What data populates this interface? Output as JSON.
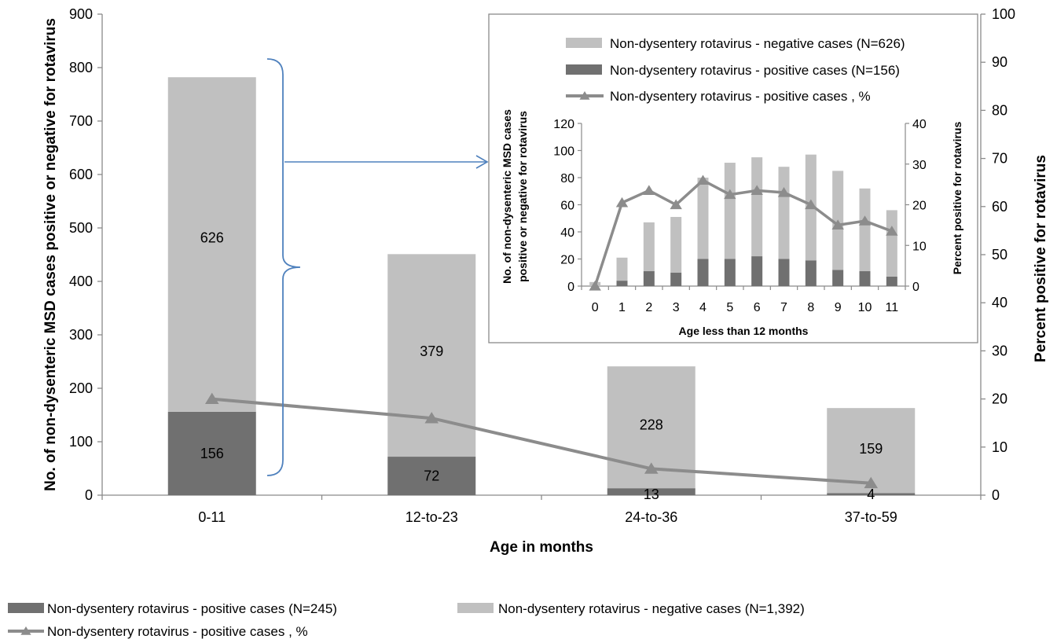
{
  "chart_data": [
    {
      "type": "bar",
      "stacked": true,
      "categories": [
        "0-11",
        "12-to-23",
        "24-to-36",
        "37-to-59"
      ],
      "xlabel": "Age in months",
      "ylabel": "No. of non-dysenteric  MSD cases positive or negative for rotavirus",
      "y2label": "Percent positive for rotavirus",
      "ylim": [
        0,
        900
      ],
      "y2lim": [
        0,
        100
      ],
      "yticks": [
        0,
        100,
        200,
        300,
        400,
        500,
        600,
        700,
        800,
        900
      ],
      "y2ticks": [
        0,
        10,
        20,
        30,
        40,
        50,
        60,
        70,
        80,
        90,
        100
      ],
      "series": [
        {
          "name": "Non-dysentery rotavirus - positive  cases  (N=245)",
          "kind": "bar",
          "color": "#707070",
          "values": [
            156,
            72,
            13,
            4
          ]
        },
        {
          "name": "Non-dysentery rotavirus - negative cases (N=1,392)",
          "kind": "bar",
          "color": "#c0c0c0",
          "values": [
            626,
            379,
            228,
            159
          ]
        },
        {
          "name": "Non-dysentery rotavirus - positive  cases , %",
          "kind": "line",
          "axis": "right",
          "color": "#8c8c8c",
          "values": [
            20,
            16,
            5.5,
            2.5
          ]
        }
      ],
      "legend": "bottom",
      "annotation": "bracket-arrow from 0-11 bar to inset"
    },
    {
      "type": "bar",
      "stacked": true,
      "inset": true,
      "categories": [
        "0",
        "1",
        "2",
        "3",
        "4",
        "5",
        "6",
        "7",
        "8",
        "9",
        "10",
        "11"
      ],
      "xlabel": "Age  less than 12 months",
      "ylabel_line1": "No. of  non-dysenteric  MSD cases",
      "ylabel_line2": "positive or negative for rotavirus",
      "y2label": "Percent positive for rotavirus",
      "ylim": [
        0,
        120
      ],
      "y2lim": [
        0,
        40
      ],
      "yticks": [
        0,
        20,
        40,
        60,
        80,
        100,
        120
      ],
      "y2ticks": [
        0,
        10,
        20,
        30,
        40
      ],
      "series": [
        {
          "name": "Non-dysentery rotavirus - negative cases (N=626)",
          "kind": "bar",
          "color": "#c0c0c0",
          "values": [
            3,
            17,
            36,
            41,
            60,
            71,
            73,
            68,
            78,
            73,
            61,
            49
          ]
        },
        {
          "name": "Non-dysentery rotavirus - positive  cases  (N=156)",
          "kind": "bar",
          "color": "#707070",
          "values": [
            0,
            4,
            11,
            10,
            20,
            20,
            22,
            20,
            19,
            12,
            11,
            7
          ]
        },
        {
          "name": "Non-dysentery rotavirus - positive  cases , %",
          "kind": "line",
          "axis": "right",
          "color": "#8c8c8c",
          "values": [
            0,
            20.5,
            23.5,
            20,
            26,
            22.5,
            23.5,
            23,
            20,
            15,
            16,
            13.5
          ]
        }
      ],
      "legend": "top"
    }
  ]
}
